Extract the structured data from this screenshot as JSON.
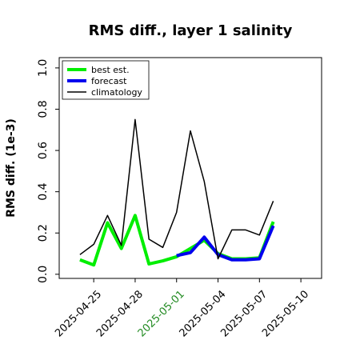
{
  "chart_data": {
    "type": "line",
    "title": "RMS diff., layer 1 salinity",
    "xlabel": "",
    "ylabel": "RMS diff. (1e-3)",
    "xlim": [
      "2025-04-22T12:00",
      "2025-05-11T12:00"
    ],
    "ylim": [
      -0.02,
      1.05
    ],
    "yticks": [
      0.0,
      0.2,
      0.4,
      0.6,
      0.8,
      1.0
    ],
    "ytick_labels": [
      "0.0",
      "0.2",
      "0.4",
      "0.6",
      "0.8",
      "1.0"
    ],
    "xticks": [
      "2025-04-25",
      "2025-04-28",
      "2025-05-01",
      "2025-05-04",
      "2025-05-07",
      "2025-05-10"
    ],
    "xtick_labels": [
      "2025-04-25",
      "2025-04-28",
      "2025-05-01",
      "2025-05-04",
      "2025-05-07",
      "2025-05-10"
    ],
    "xtick_colors": [
      "#000000",
      "#000000",
      "#228b22",
      "#000000",
      "#000000",
      "#000000"
    ],
    "grid": false,
    "legend_position": "top-left",
    "series": [
      {
        "name": "best est.",
        "color": "#00ee00",
        "x": [
          "2025-04-24",
          "2025-04-25",
          "2025-04-26",
          "2025-04-27",
          "2025-04-28",
          "2025-04-29",
          "2025-04-30",
          "2025-05-01",
          "2025-05-02",
          "2025-05-03",
          "2025-05-04",
          "2025-05-05",
          "2025-05-06",
          "2025-05-07",
          "2025-05-08"
        ],
        "y": [
          0.07,
          0.045,
          0.25,
          0.125,
          0.285,
          0.05,
          0.065,
          0.085,
          0.125,
          0.165,
          0.1,
          0.075,
          0.075,
          0.08,
          0.255
        ]
      },
      {
        "name": "forecast",
        "color": "#0000ee",
        "x": [
          "2025-05-01",
          "2025-05-02",
          "2025-05-03",
          "2025-05-04",
          "2025-05-05",
          "2025-05-06",
          "2025-05-07",
          "2025-05-08"
        ],
        "y": [
          0.09,
          0.105,
          0.18,
          0.095,
          0.07,
          0.07,
          0.075,
          0.235
        ]
      },
      {
        "name": "climatology",
        "color": "#000000",
        "x": [
          "2025-04-24",
          "2025-04-25",
          "2025-04-26",
          "2025-04-27",
          "2025-04-28",
          "2025-04-29",
          "2025-04-30",
          "2025-05-01",
          "2025-05-02",
          "2025-05-03",
          "2025-05-04",
          "2025-05-05",
          "2025-05-06",
          "2025-05-07",
          "2025-05-08"
        ],
        "y": [
          0.095,
          0.145,
          0.285,
          0.14,
          0.75,
          0.17,
          0.13,
          0.3,
          0.695,
          0.45,
          0.075,
          0.215,
          0.215,
          0.19,
          0.355
        ]
      }
    ]
  }
}
